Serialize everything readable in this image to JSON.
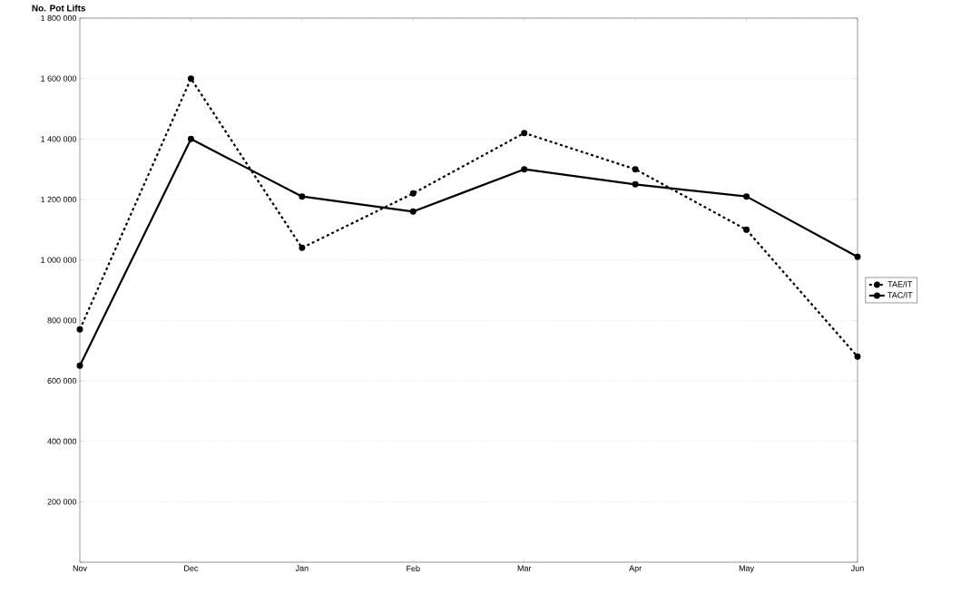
{
  "chart_data": {
    "type": "line",
    "ylabel": "No. Pot Lifts",
    "categories": [
      "Nov",
      "Dec",
      "Jan",
      "Feb",
      "Mar",
      "Apr",
      "May",
      "Jun"
    ],
    "series": [
      {
        "name": "TAE/IT",
        "color": "#000000",
        "line_style": "dashed",
        "values": [
          770000,
          1600000,
          1040000,
          1220000,
          1420000,
          1300000,
          1100000,
          680000
        ]
      },
      {
        "name": "TAC/IT",
        "color": "#000000",
        "line_style": "solid",
        "values": [
          650000,
          1400000,
          1210000,
          1160000,
          1300000,
          1250000,
          1210000,
          1010000
        ]
      }
    ],
    "ylim": [
      0,
      1800000
    ],
    "yticks": [
      {
        "value": 0,
        "label": null
      },
      {
        "value": 200000,
        "label": "200 000"
      },
      {
        "value": 400000,
        "label": "400 000"
      },
      {
        "value": 600000,
        "label": "600 000"
      },
      {
        "value": 800000,
        "label": "800 000"
      },
      {
        "value": 1000000,
        "label": "1 000 000"
      },
      {
        "value": 1200000,
        "label": "1 200 000"
      },
      {
        "value": 1400000,
        "label": "1 400 000"
      },
      {
        "value": 1600000,
        "label": "1 600 000"
      },
      {
        "value": 1800000,
        "label": "1 800 000"
      }
    ],
    "grid": "y",
    "legend": "right",
    "marker": "circle"
  }
}
